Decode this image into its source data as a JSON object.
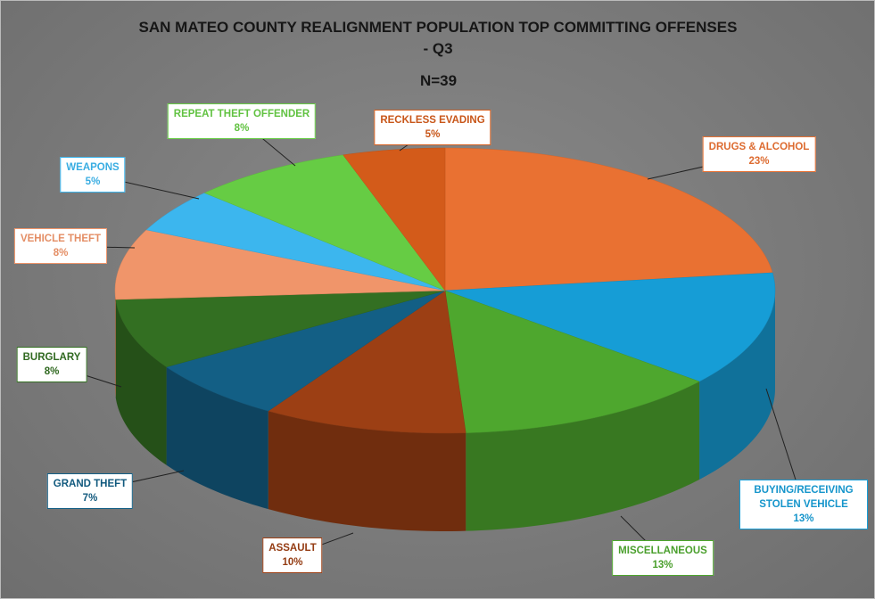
{
  "chart_data": {
    "type": "pie3d",
    "title": "SAN MATEO COUNTY REALIGNMENT POPULATION TOP COMMITTING OFFENSES - Q3",
    "subtitle": "N=39",
    "categories": [
      "DRUGS & ALCOHOL",
      "BUYING/RECEIVING STOLEN VEHICLE",
      "MISCELLANEOUS",
      "ASSAULT",
      "GRAND THEFT",
      "BURGLARY",
      "VEHICLE THEFT",
      "WEAPONS",
      "REPEAT THEFT OFFENDER",
      "RECKLESS EVADING"
    ],
    "values": [
      23,
      13,
      13,
      10,
      7,
      8,
      8,
      5,
      8,
      5
    ],
    "value_labels": [
      "23%",
      "13%",
      "13%",
      "10%",
      "7%",
      "8%",
      "8%",
      "5%",
      "8%",
      "5%"
    ],
    "colors": [
      "#e97132",
      "#169dd6",
      "#4ea72e",
      "#9c3f14",
      "#135f85",
      "#336f22",
      "#f0956a",
      "#3cb6ee",
      "#66cc44",
      "#d35b1a"
    ]
  }
}
